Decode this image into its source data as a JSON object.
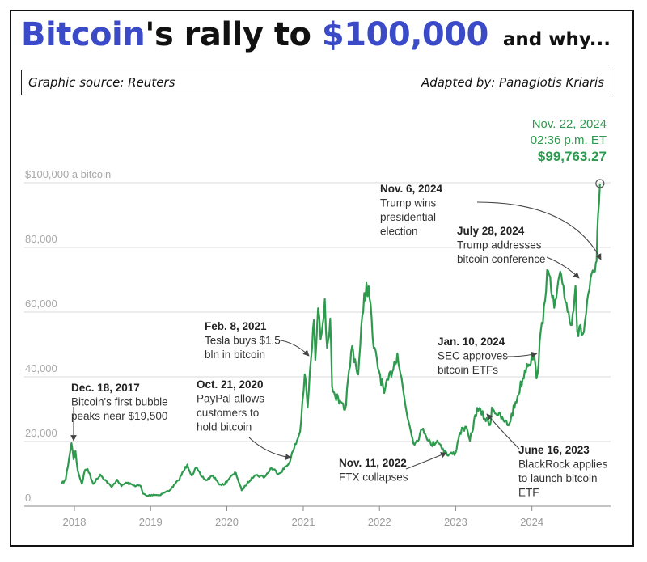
{
  "headline": {
    "part1": "Bitcoin",
    "part2": "'s rally to ",
    "part3": "$100,000",
    "part4": " and why..."
  },
  "source": {
    "left": "Graphic source: Reuters",
    "right": "Adapted by: Panagiotis Kriaris"
  },
  "colors": {
    "line": "#2e9a4e",
    "headline_blue": "#3b4bc8",
    "grid": "#d9d9d9",
    "tick_text": "#a8a8a8",
    "annotation_text": "#333333"
  },
  "chart_data": {
    "type": "line",
    "x_unit": "date",
    "y_unit": "USD per bitcoin",
    "ylim": [
      0,
      100000
    ],
    "xlim": [
      "2017-10-01",
      "2024-11-22"
    ],
    "y_ticks": [
      {
        "value": 0,
        "label": "0"
      },
      {
        "value": 20000,
        "label": "20,000"
      },
      {
        "value": 40000,
        "label": "40,000"
      },
      {
        "value": 60000,
        "label": "60,000"
      },
      {
        "value": 80000,
        "label": "80,000"
      },
      {
        "value": 100000,
        "label": "$100,000 a bitcoin"
      }
    ],
    "x_ticks": [
      {
        "date": "2018-01-01",
        "label": "2018"
      },
      {
        "date": "2019-01-01",
        "label": "2019"
      },
      {
        "date": "2020-01-01",
        "label": "2020"
      },
      {
        "date": "2021-01-01",
        "label": "2021"
      },
      {
        "date": "2022-01-01",
        "label": "2022"
      },
      {
        "date": "2023-01-01",
        "label": "2023"
      },
      {
        "date": "2024-01-01",
        "label": "2024"
      }
    ],
    "grid": "horizontal",
    "series": [
      {
        "points": [
          [
            "2017-11-01",
            7000
          ],
          [
            "2017-11-20",
            8200
          ],
          [
            "2017-12-07",
            15000
          ],
          [
            "2017-12-18",
            19500
          ],
          [
            "2017-12-28",
            14500
          ],
          [
            "2018-01-06",
            17100
          ],
          [
            "2018-01-17",
            11000
          ],
          [
            "2018-02-06",
            6900
          ],
          [
            "2018-02-20",
            11100
          ],
          [
            "2018-03-05",
            11500
          ],
          [
            "2018-04-01",
            6900
          ],
          [
            "2018-05-05",
            9800
          ],
          [
            "2018-06-28",
            5900
          ],
          [
            "2018-07-25",
            8200
          ],
          [
            "2018-08-14",
            6200
          ],
          [
            "2018-09-04",
            7300
          ],
          [
            "2018-10-15",
            6400
          ],
          [
            "2018-11-14",
            6300
          ],
          [
            "2018-11-25",
            3900
          ],
          [
            "2018-12-15",
            3200
          ],
          [
            "2019-01-15",
            3600
          ],
          [
            "2019-02-08",
            3400
          ],
          [
            "2019-04-02",
            4900
          ],
          [
            "2019-05-14",
            8000
          ],
          [
            "2019-06-26",
            12900
          ],
          [
            "2019-07-17",
            9500
          ],
          [
            "2019-08-06",
            11900
          ],
          [
            "2019-08-29",
            9500
          ],
          [
            "2019-09-24",
            8000
          ],
          [
            "2019-10-26",
            9500
          ],
          [
            "2019-11-22",
            7000
          ],
          [
            "2019-12-17",
            6600
          ],
          [
            "2020-01-15",
            8800
          ],
          [
            "2020-02-13",
            10300
          ],
          [
            "2020-03-12",
            4900
          ],
          [
            "2020-04-29",
            8800
          ],
          [
            "2020-05-15",
            9600
          ],
          [
            "2020-07-01",
            9100
          ],
          [
            "2020-08-01",
            11800
          ],
          [
            "2020-09-07",
            10100
          ],
          [
            "2020-10-21",
            12900
          ],
          [
            "2020-11-18",
            17800
          ],
          [
            "2020-12-17",
            23000
          ],
          [
            "2021-01-08",
            40800
          ],
          [
            "2021-01-22",
            30500
          ],
          [
            "2021-02-08",
            46200
          ],
          [
            "2021-02-21",
            57500
          ],
          [
            "2021-02-28",
            45200
          ],
          [
            "2021-03-13",
            61200
          ],
          [
            "2021-03-25",
            51600
          ],
          [
            "2021-04-14",
            64000
          ],
          [
            "2021-04-25",
            49000
          ],
          [
            "2021-05-10",
            58000
          ],
          [
            "2021-05-19",
            37000
          ],
          [
            "2021-06-22",
            31700
          ],
          [
            "2021-07-20",
            29800
          ],
          [
            "2021-08-23",
            49500
          ],
          [
            "2021-09-21",
            40700
          ],
          [
            "2021-10-20",
            65900
          ],
          [
            "2021-11-10",
            68000
          ],
          [
            "2021-12-04",
            49000
          ],
          [
            "2022-01-24",
            35000
          ],
          [
            "2022-03-28",
            47300
          ],
          [
            "2022-05-11",
            29000
          ],
          [
            "2022-06-18",
            19000
          ],
          [
            "2022-07-29",
            24000
          ],
          [
            "2022-09-06",
            18800
          ],
          [
            "2022-10-05",
            20300
          ],
          [
            "2022-11-11",
            17000
          ],
          [
            "2022-11-21",
            15800
          ],
          [
            "2022-12-31",
            16500
          ],
          [
            "2023-01-20",
            22700
          ],
          [
            "2023-02-16",
            24600
          ],
          [
            "2023-03-10",
            20200
          ],
          [
            "2023-04-14",
            30400
          ],
          [
            "2023-06-15",
            25100
          ],
          [
            "2023-06-23",
            30500
          ],
          [
            "2023-08-17",
            26600
          ],
          [
            "2023-09-11",
            25000
          ],
          [
            "2023-10-24",
            33900
          ],
          [
            "2023-12-08",
            44000
          ],
          [
            "2024-01-10",
            46600
          ],
          [
            "2024-01-23",
            39500
          ],
          [
            "2024-02-28",
            62000
          ],
          [
            "2024-03-14",
            73000
          ],
          [
            "2024-04-17",
            61300
          ],
          [
            "2024-05-21",
            71400
          ],
          [
            "2024-07-05",
            56000
          ],
          [
            "2024-07-28",
            68200
          ],
          [
            "2024-08-05",
            54000
          ],
          [
            "2024-09-06",
            53900
          ],
          [
            "2024-09-27",
            65800
          ],
          [
            "2024-10-29",
            72500
          ],
          [
            "2024-11-06",
            75800
          ],
          [
            "2024-11-13",
            90000
          ],
          [
            "2024-11-22",
            99763.27
          ]
        ]
      }
    ],
    "end_label": {
      "date_line": "Nov. 22, 2024",
      "time_line": "02:36 p.m. ET",
      "value": "$99,763.27"
    },
    "annotations": [
      {
        "date": "Dec. 18, 2017",
        "line1": "Bitcoin's first bubble",
        "line2": "peaks near $19,500",
        "line3": "",
        "line4": ""
      },
      {
        "date": "Oct. 21, 2020",
        "line1": "PayPal allows",
        "line2": "customers to",
        "line3": "hold bitcoin",
        "line4": ""
      },
      {
        "date": "Feb. 8, 2021",
        "line1": "Tesla buys $1.5",
        "line2": "bln in bitcoin",
        "line3": "",
        "line4": ""
      },
      {
        "date": "Nov. 11, 2022",
        "line1": "FTX collapses",
        "line2": "",
        "line3": "",
        "line4": ""
      },
      {
        "date": "June 16, 2023",
        "line1": "BlackRock applies",
        "line2": "to launch bitcoin",
        "line3": "ETF",
        "line4": ""
      },
      {
        "date": "Jan. 10, 2024",
        "line1": "SEC approves",
        "line2": "bitcoin ETFs",
        "line3": "",
        "line4": ""
      },
      {
        "date": "July 28, 2024",
        "line1": "Trump addresses",
        "line2": "bitcoin conference",
        "line3": "",
        "line4": ""
      },
      {
        "date": "Nov. 6, 2024",
        "line1": "Trump wins",
        "line2": "presidential",
        "line3": "election",
        "line4": ""
      }
    ]
  }
}
